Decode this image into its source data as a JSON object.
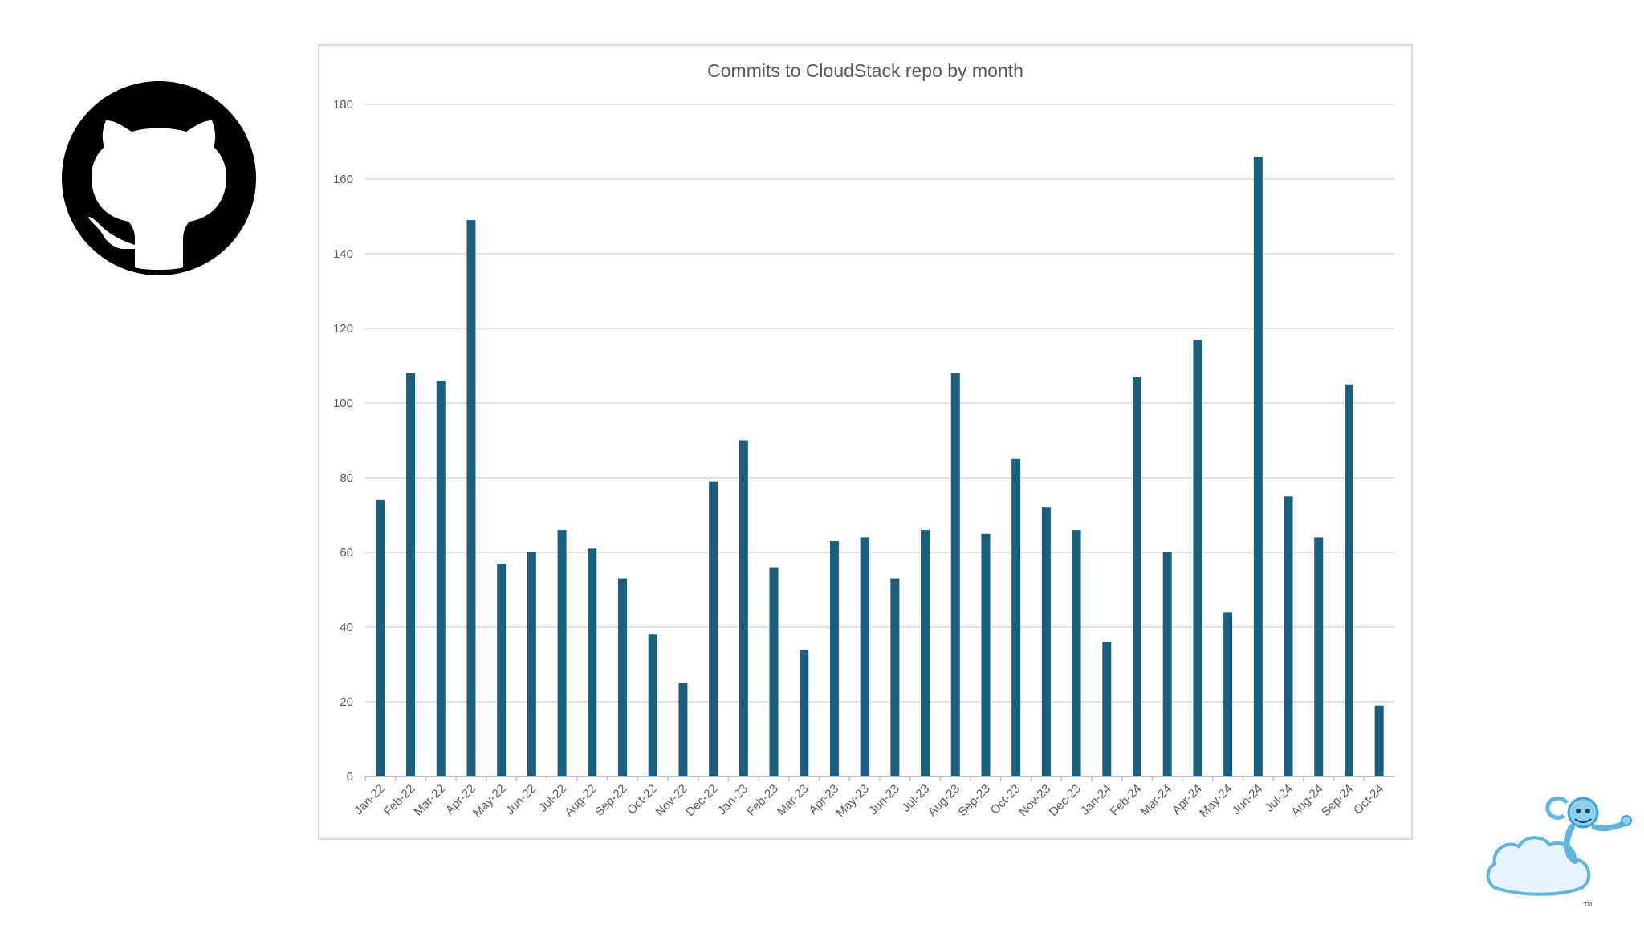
{
  "slide": {
    "logo_left": "github-icon",
    "logo_right": "cloudstack-monkey-icon",
    "logo_right_mark": "TM"
  },
  "chart_data": {
    "type": "bar",
    "title": "Commits to CloudStack repo by month",
    "xlabel": "",
    "ylabel": "",
    "ylim": [
      0,
      180
    ],
    "yticks": [
      0,
      20,
      40,
      60,
      80,
      100,
      120,
      140,
      160,
      180
    ],
    "grid": true,
    "legend": "none",
    "bar_color": "#1b5f7e",
    "categories": [
      "Jan-22",
      "Feb-22",
      "Mar-22",
      "Apr-22",
      "May-22",
      "Jun-22",
      "Jul-22",
      "Aug-22",
      "Sep-22",
      "Oct-22",
      "Nov-22",
      "Dec-22",
      "Jan-23",
      "Feb-23",
      "Mar-23",
      "Apr-23",
      "May-23",
      "Jun-23",
      "Jul-23",
      "Aug-23",
      "Sep-23",
      "Oct-23",
      "Nov-23",
      "Dec-23",
      "Jan-24",
      "Feb-24",
      "Mar-24",
      "Apr-24",
      "May-24",
      "Jun-24",
      "Jul-24",
      "Aug-24",
      "Sep-24",
      "Oct-24"
    ],
    "values": [
      74,
      108,
      106,
      149,
      57,
      60,
      66,
      61,
      53,
      38,
      25,
      79,
      90,
      56,
      34,
      63,
      64,
      53,
      66,
      108,
      65,
      85,
      72,
      66,
      36,
      107,
      60,
      117,
      44,
      166,
      75,
      64,
      105,
      19
    ]
  }
}
